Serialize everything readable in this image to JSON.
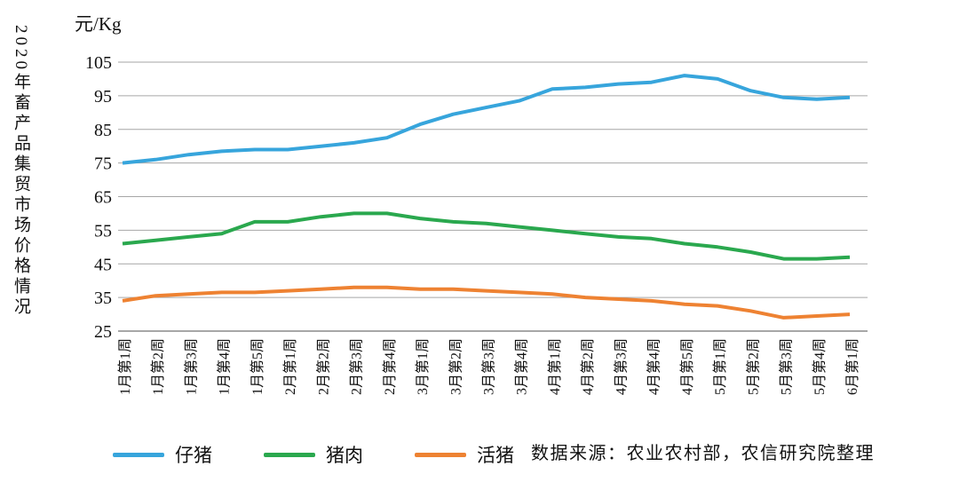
{
  "vertical_title": "2020年畜产品集贸市场价格情况",
  "unit_label": "元/Kg",
  "source_note": "数据来源：农业农村部，农信研究院整理",
  "colors": {
    "piglet_blue": "#37A5DC",
    "pork_green": "#2AA84E",
    "live_pig_orange": "#EE8232",
    "gridline": "#A6A6A6",
    "axis": "#8A8A8A",
    "text": "#111111"
  },
  "chart_data": {
    "type": "line",
    "title": "2020年畜产品集贸市场价格情况",
    "ylabel": "元/Kg",
    "xlabel": "",
    "ylim": [
      25,
      105
    ],
    "ytick_interval": 10,
    "ytick_labels": [
      "25",
      "35",
      "45",
      "55",
      "65",
      "75",
      "85",
      "95",
      "105"
    ],
    "grid": "horizontal gridlines on",
    "legend_position": "bottom-left",
    "categories": [
      "1月第1周",
      "1月第2周",
      "1月第3周",
      "1月第4周",
      "1月第5周",
      "2月第1周",
      "2月第2周",
      "2月第3周",
      "2月第4周",
      "3月第1周",
      "3月第2周",
      "3月第3周",
      "3月第4周",
      "4月第1周",
      "4月第2周",
      "4月第3周",
      "4月第4周",
      "4月第5周",
      "5月第1周",
      "5月第2周",
      "5月第3周",
      "5月第4周",
      "6月第1周"
    ],
    "series": [
      {
        "name": "仔猪",
        "color_key": "piglet_blue",
        "values": [
          75,
          76,
          77.5,
          78.5,
          79,
          79,
          80,
          81,
          82.5,
          86.5,
          89.5,
          91.5,
          93.5,
          97,
          97.5,
          98.5,
          99,
          101,
          100,
          96.5,
          94.5,
          94,
          94.5
        ]
      },
      {
        "name": "猪肉",
        "color_key": "pork_green",
        "values": [
          51,
          52,
          53,
          54,
          57.5,
          57.5,
          59,
          60,
          60,
          58.5,
          57.5,
          57,
          56,
          55,
          54,
          53,
          52.5,
          51,
          50,
          48.5,
          46.5,
          46.5,
          47
        ]
      },
      {
        "name": "活猪",
        "color_key": "live_pig_orange",
        "values": [
          34,
          35.5,
          36,
          36.5,
          36.5,
          37,
          37.5,
          38,
          38,
          37.5,
          37.5,
          37,
          36.5,
          36,
          35,
          34.5,
          34,
          33,
          32.5,
          31,
          29,
          29.5,
          30
        ]
      }
    ]
  }
}
